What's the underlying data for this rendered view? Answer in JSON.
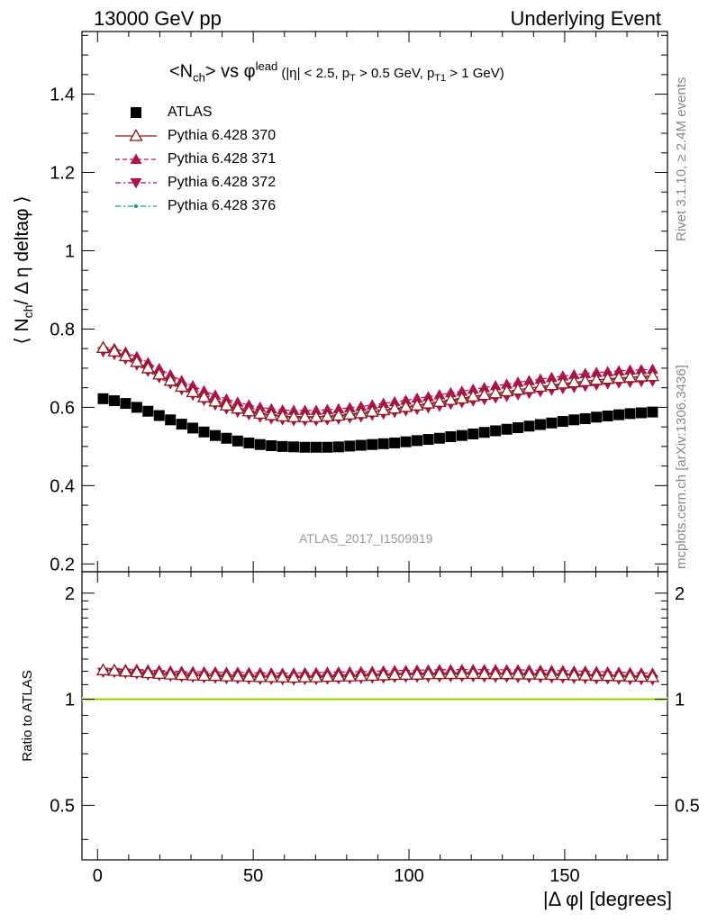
{
  "header": {
    "left": "13000 GeV pp",
    "right": "Underlying Event"
  },
  "side": {
    "rivet": "Rivet 3.1.10, ≥ 2.4M events",
    "mcplots": "mcplots.cern.ch [arXiv:1306.3436]"
  },
  "chart_data": {
    "type": "scatter",
    "title_main": "<N",
    "title_sub": "ch",
    "title_mid": "> vs φ",
    "title_sup": "lead",
    "title_cond": " (|η| < 2.5, p",
    "title_cond_sub1": "T",
    "title_cond2": " > 0.5 GeV, p",
    "title_cond_sub2": "T1",
    "title_cond3": " > 1 GeV)",
    "watermark": "ATLAS_2017_I1509919",
    "xlabel": "|Δ φ| [degrees]",
    "ylabel_main_pre": "⟨ N",
    "ylabel_main_sub": "ch",
    "ylabel_main_post": "/ Δ η deltaφ ⟩",
    "ylabel_ratio": "Ratio to ATLAS",
    "xlim": [
      -5,
      183
    ],
    "ylim_main": [
      0.18,
      1.56
    ],
    "ylim_ratio": [
      0.35,
      2.3
    ],
    "ratio_log_scale": true,
    "x_ticks": [
      0,
      50,
      100,
      150
    ],
    "y_ticks_main": [
      0.2,
      0.4,
      0.6,
      0.8,
      1,
      1.2,
      1.4
    ],
    "y_ticks_ratio": [
      0.5,
      1,
      2
    ],
    "x": [
      1.8,
      5.4,
      9.0,
      12.6,
      16.2,
      19.8,
      23.4,
      27.0,
      30.6,
      34.2,
      37.8,
      41.4,
      45.0,
      48.6,
      52.2,
      55.8,
      59.4,
      63.0,
      66.6,
      70.2,
      73.8,
      77.4,
      81.0,
      84.6,
      88.2,
      91.8,
      95.4,
      99.0,
      102.6,
      106.2,
      109.8,
      113.4,
      117.0,
      120.6,
      124.2,
      127.8,
      131.4,
      135.0,
      138.6,
      142.2,
      145.8,
      149.4,
      153.0,
      156.6,
      160.2,
      163.8,
      167.4,
      171.0,
      174.6,
      178.2
    ],
    "legend": [
      {
        "label": "ATLAS",
        "marker": "square",
        "color": "#000000",
        "line": "none"
      },
      {
        "label": "Pythia 6.428 370",
        "marker": "triangle-up-open",
        "color": "#8b1a1a",
        "line": "solid"
      },
      {
        "label": "Pythia 6.428 371",
        "marker": "triangle-up",
        "color": "#b0124e",
        "line": "dashed"
      },
      {
        "label": "Pythia 6.428 372",
        "marker": "triangle-down",
        "color": "#b0124e",
        "line": "dashdot"
      },
      {
        "label": "Pythia 6.428 376",
        "marker": "dot",
        "color": "#1a9a7a",
        "line": "dashdot"
      }
    ],
    "series": [
      {
        "name": "ATLAS",
        "values": [
          0.622,
          0.617,
          0.61,
          0.6,
          0.59,
          0.579,
          0.568,
          0.557,
          0.547,
          0.537,
          0.528,
          0.521,
          0.514,
          0.509,
          0.505,
          0.502,
          0.5,
          0.499,
          0.498,
          0.498,
          0.498,
          0.499,
          0.501,
          0.503,
          0.505,
          0.507,
          0.509,
          0.512,
          0.515,
          0.518,
          0.521,
          0.525,
          0.528,
          0.532,
          0.536,
          0.54,
          0.544,
          0.548,
          0.552,
          0.556,
          0.56,
          0.564,
          0.568,
          0.571,
          0.575,
          0.578,
          0.581,
          0.584,
          0.586,
          0.588
        ]
      },
      {
        "name": "Pythia 6.428 370",
        "values": [
          0.752,
          0.743,
          0.731,
          0.716,
          0.7,
          0.684,
          0.668,
          0.653,
          0.639,
          0.626,
          0.615,
          0.605,
          0.597,
          0.59,
          0.584,
          0.58,
          0.577,
          0.575,
          0.575,
          0.575,
          0.577,
          0.579,
          0.582,
          0.585,
          0.589,
          0.593,
          0.597,
          0.601,
          0.605,
          0.61,
          0.614,
          0.619,
          0.623,
          0.628,
          0.632,
          0.636,
          0.641,
          0.645,
          0.649,
          0.653,
          0.657,
          0.661,
          0.664,
          0.667,
          0.67,
          0.673,
          0.675,
          0.677,
          0.679,
          0.68
        ]
      },
      {
        "name": "Pythia 6.428 371",
        "values": [
          0.755,
          0.75,
          0.741,
          0.729,
          0.714,
          0.699,
          0.683,
          0.668,
          0.655,
          0.642,
          0.631,
          0.621,
          0.613,
          0.606,
          0.6,
          0.596,
          0.593,
          0.592,
          0.592,
          0.592,
          0.594,
          0.596,
          0.599,
          0.602,
          0.606,
          0.61,
          0.614,
          0.618,
          0.623,
          0.627,
          0.632,
          0.637,
          0.641,
          0.646,
          0.65,
          0.655,
          0.659,
          0.664,
          0.668,
          0.672,
          0.676,
          0.68,
          0.683,
          0.686,
          0.689,
          0.691,
          0.693,
          0.695,
          0.696,
          0.697
        ]
      },
      {
        "name": "Pythia 6.428 372",
        "values": [
          0.742,
          0.735,
          0.723,
          0.708,
          0.692,
          0.676,
          0.66,
          0.645,
          0.631,
          0.618,
          0.606,
          0.596,
          0.588,
          0.581,
          0.575,
          0.571,
          0.568,
          0.566,
          0.566,
          0.566,
          0.568,
          0.57,
          0.573,
          0.576,
          0.58,
          0.583,
          0.587,
          0.591,
          0.595,
          0.599,
          0.603,
          0.608,
          0.612,
          0.616,
          0.62,
          0.624,
          0.628,
          0.632,
          0.636,
          0.64,
          0.644,
          0.648,
          0.651,
          0.654,
          0.657,
          0.66,
          0.662,
          0.664,
          0.666,
          0.667
        ]
      },
      {
        "name": "Pythia 6.428 376",
        "values": [
          0.748,
          0.74,
          0.728,
          0.713,
          0.697,
          0.681,
          0.665,
          0.65,
          0.636,
          0.623,
          0.612,
          0.602,
          0.594,
          0.587,
          0.581,
          0.577,
          0.574,
          0.572,
          0.572,
          0.572,
          0.574,
          0.576,
          0.579,
          0.582,
          0.586,
          0.59,
          0.594,
          0.598,
          0.602,
          0.607,
          0.611,
          0.616,
          0.62,
          0.625,
          0.629,
          0.633,
          0.638,
          0.642,
          0.646,
          0.65,
          0.654,
          0.658,
          0.661,
          0.664,
          0.667,
          0.67,
          0.672,
          0.674,
          0.676,
          0.677
        ]
      }
    ]
  }
}
